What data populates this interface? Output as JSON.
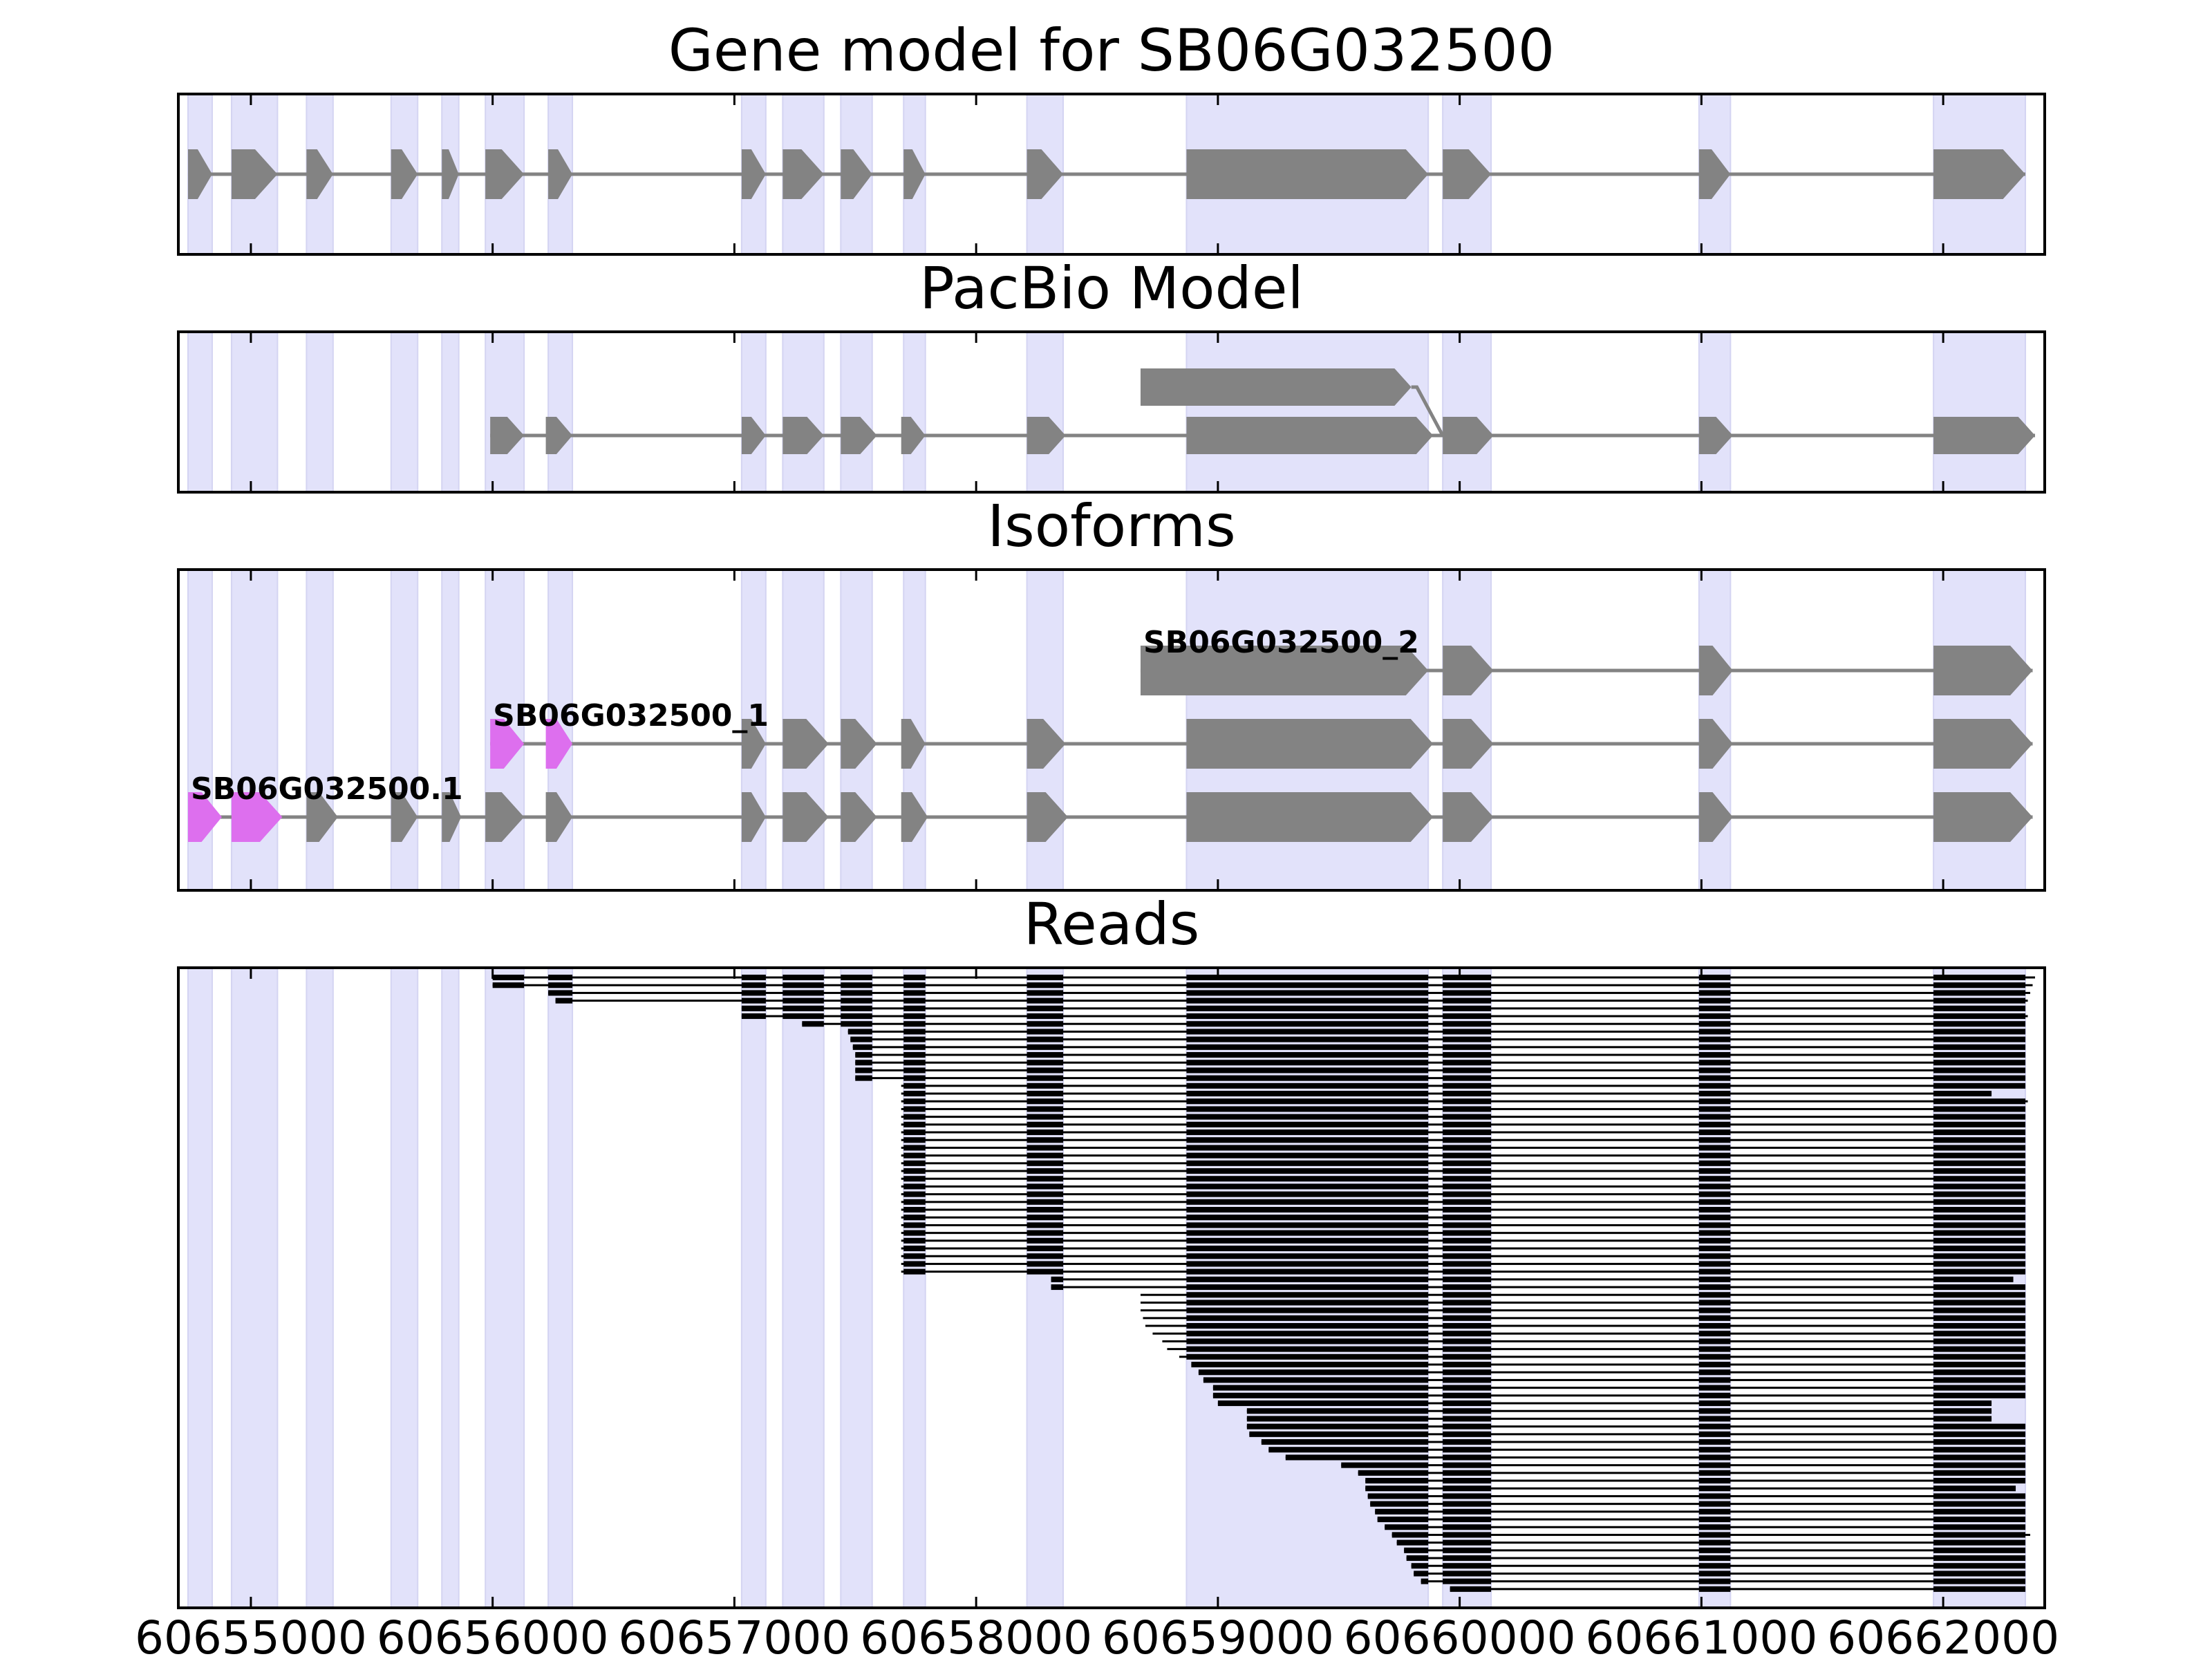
{
  "chart_data": {
    "type": "gene_structure",
    "x_axis": {
      "ticks": [
        60655000,
        60656000,
        60657000,
        60658000,
        60659000,
        60660000,
        60661000,
        60662000
      ],
      "tick_labels": [
        "60655000",
        "60656000",
        "60657000",
        "60658000",
        "60659000",
        "60660000",
        "60661000",
        "60662000"
      ],
      "xlim": [
        60654700,
        60662420
      ]
    },
    "colors": {
      "exon": "#838383",
      "intron": "#838383",
      "highlight_exon": "#dd6fee",
      "exon_band": "#e2e2fa",
      "read": "#000000",
      "frame": "#000000"
    },
    "exon_bands": [
      [
        60654740,
        60654840
      ],
      [
        60654920,
        60655110
      ],
      [
        60655230,
        60655340
      ],
      [
        60655580,
        60655690
      ],
      [
        60655790,
        60655860
      ],
      [
        60655970,
        60656130
      ],
      [
        60656230,
        60656330
      ],
      [
        60657030,
        60657130
      ],
      [
        60657200,
        60657370
      ],
      [
        60657440,
        60657570
      ],
      [
        60657700,
        60657790
      ],
      [
        60658210,
        60658360
      ],
      [
        60658870,
        60659870
      ],
      [
        60659930,
        60660130
      ],
      [
        60660990,
        60661120
      ],
      [
        60661960,
        60662340
      ]
    ],
    "panels": [
      {
        "title": "Gene model for SB06G032500",
        "tracks": [
          {
            "strand": "+",
            "highlight_first": 0,
            "exons": [
              [
                60654740,
                60654840
              ],
              [
                60654920,
                60655110
              ],
              [
                60655230,
                60655340
              ],
              [
                60655580,
                60655690
              ],
              [
                60655790,
                60655860
              ],
              [
                60655970,
                60656130
              ],
              [
                60656230,
                60656330
              ],
              [
                60657030,
                60657130
              ],
              [
                60657200,
                60657370
              ],
              [
                60657440,
                60657570
              ],
              [
                60657700,
                60657790
              ],
              [
                60658210,
                60658360
              ],
              [
                60658870,
                60659870
              ],
              [
                60659930,
                60660130
              ],
              [
                60660990,
                60661120
              ],
              [
                60661960,
                60662340
              ]
            ]
          }
        ]
      },
      {
        "title": "PacBio Model",
        "tracks": [
          {
            "strand": "+",
            "highlight_first": 0,
            "exons": [
              [
                60655990,
                60656130
              ],
              [
                60656220,
                60656330
              ],
              [
                60657030,
                60657130
              ],
              [
                60657200,
                60657370
              ],
              [
                60657440,
                60657590
              ],
              [
                60657690,
                60657790
              ],
              [
                60658210,
                60658370
              ],
              [
                60658870,
                60659890
              ],
              [
                60659930,
                60660140
              ],
              [
                60660990,
                60661130
              ],
              [
                60661960,
                60662380
              ]
            ]
          },
          {
            "strand": "+",
            "highlight_first": 0,
            "exons": [
              [
                60658680,
                60659800
              ]
            ],
            "connect_to": [
              60659930,
              0
            ]
          }
        ]
      },
      {
        "title": "Isoforms",
        "tracks": [
          {
            "label": "SB06G032500.1",
            "strand": "+",
            "highlight_first": 2,
            "exons": [
              [
                60654740,
                60654880
              ],
              [
                60654920,
                60655130
              ],
              [
                60655230,
                60655360
              ],
              [
                60655580,
                60655690
              ],
              [
                60655790,
                60655870
              ],
              [
                60655970,
                60656130
              ],
              [
                60656220,
                60656330
              ],
              [
                60657030,
                60657130
              ],
              [
                60657200,
                60657390
              ],
              [
                60657440,
                60657590
              ],
              [
                60657690,
                60657800
              ],
              [
                60658210,
                60658380
              ],
              [
                60658870,
                60659890
              ],
              [
                60659930,
                60660140
              ],
              [
                60660990,
                60661130
              ],
              [
                60661960,
                60662370
              ]
            ]
          },
          {
            "label": "SB06G032500_1",
            "strand": "+",
            "highlight_first": 2,
            "exons": [
              [
                60655990,
                60656130
              ],
              [
                60656220,
                60656330
              ],
              [
                60657030,
                60657130
              ],
              [
                60657200,
                60657390
              ],
              [
                60657440,
                60657590
              ],
              [
                60657690,
                60657790
              ],
              [
                60658210,
                60658370
              ],
              [
                60658870,
                60659890
              ],
              [
                60659930,
                60660140
              ],
              [
                60660990,
                60661130
              ],
              [
                60661960,
                60662370
              ]
            ]
          },
          {
            "label": "SB06G032500_2",
            "strand": "+",
            "highlight_first": 0,
            "exons": [
              [
                60658680,
                60659870
              ],
              [
                60659930,
                60660140
              ],
              [
                60660990,
                60661130
              ],
              [
                60661960,
                60662370
              ]
            ]
          }
        ]
      }
    ],
    "reads_panel": {
      "title": "Reads",
      "read_count": 80,
      "shared_exons": [
        [
          60659930,
          60660130
        ],
        [
          60660990,
          60661120
        ]
      ],
      "last_exon_start": 60661960,
      "intron_read_end": 60662340,
      "starts": [
        60656000,
        60656000,
        60656230,
        60656260,
        60657030,
        60657030,
        60657280,
        60657470,
        60657480,
        60657490,
        60657500,
        60657500,
        60657500,
        60657500,
        60657690,
        60657690,
        60657690,
        60657690,
        60657690,
        60657690,
        60657690,
        60657690,
        60657690,
        60657690,
        60657690,
        60657690,
        60657690,
        60657690,
        60657690,
        60657690,
        60657690,
        60657690,
        60657690,
        60657690,
        60657690,
        60657690,
        60657690,
        60657690,
        60657690,
        60658310,
        60658310,
        60658680,
        60658680,
        60658680,
        60658690,
        60658700,
        60658730,
        60658770,
        60658790,
        60658840,
        60658890,
        60658920,
        60658940,
        60658980,
        60658980,
        60659000,
        60659120,
        60659120,
        60659120,
        60659130,
        60659180,
        60659210,
        60659280,
        60659510,
        60659580,
        60659610,
        60659610,
        60659620,
        60659630,
        60659650,
        60659660,
        60659690,
        60659720,
        60659740,
        60659770,
        60659780,
        60659800,
        60659810,
        60659840,
        60659960
      ],
      "ends": [
        60662380,
        60662370,
        60662360,
        60662350,
        60662340,
        60662350,
        60662340,
        60662340,
        60662340,
        60662340,
        60662340,
        60662340,
        60662340,
        60662340,
        60662340,
        60662200,
        60662350,
        60662340,
        60662340,
        60662340,
        60662340,
        60662340,
        60662340,
        60662340,
        60662340,
        60662340,
        60662340,
        60662340,
        60662340,
        60662340,
        60662340,
        60662340,
        60662340,
        60662340,
        60662340,
        60662340,
        60662340,
        60662340,
        60662340,
        60662290,
        60662340,
        60662340,
        60662340,
        60662340,
        60662340,
        60662340,
        60662340,
        60662340,
        60662340,
        60662340,
        60662340,
        60662340,
        60662340,
        60662340,
        60662340,
        60662200,
        60662200,
        60662200,
        60662340,
        60662340,
        60662340,
        60662340,
        60662340,
        60662340,
        60662340,
        60662340,
        60662300,
        60662340,
        60662340,
        60662340,
        60662340,
        60662340,
        60662360,
        60662340,
        60662340,
        60662340,
        60662340,
        60662340,
        60662340,
        60662340
      ]
    }
  }
}
